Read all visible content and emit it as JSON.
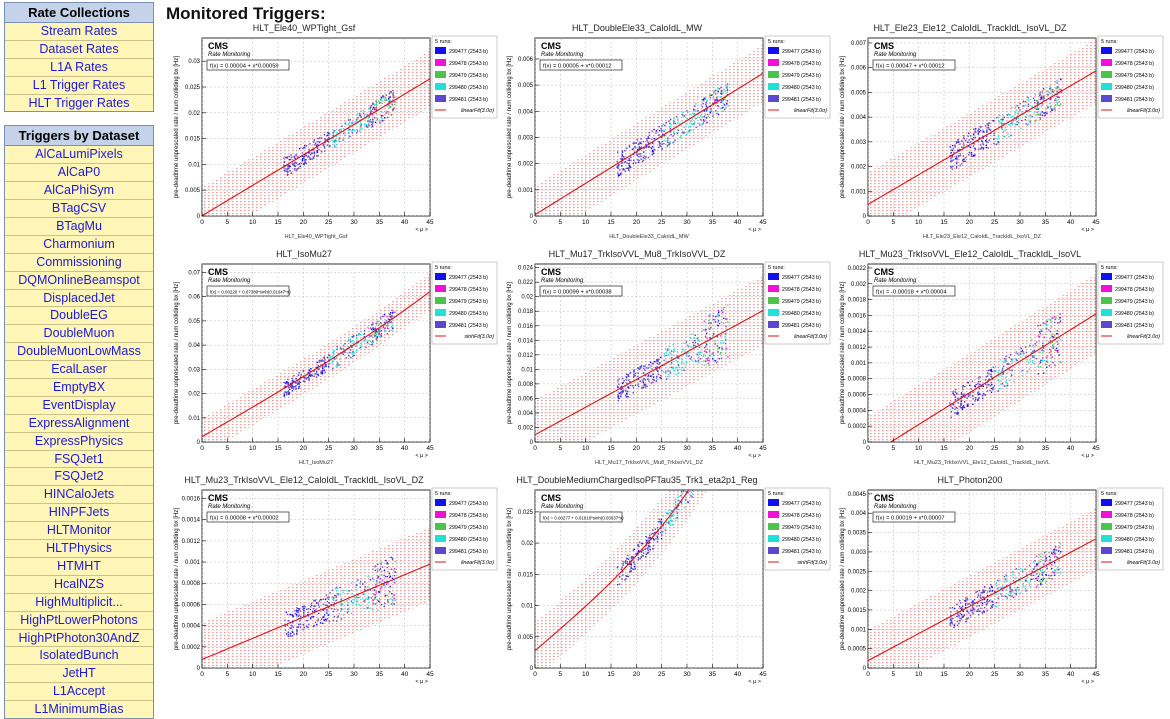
{
  "sidebar": {
    "rate_collections": {
      "title": "Rate Collections",
      "items": [
        "Stream Rates",
        "Dataset Rates",
        "L1A Rates",
        "L1 Trigger Rates",
        "HLT Trigger Rates"
      ]
    },
    "triggers_by_dataset": {
      "title": "Triggers by Dataset",
      "items": [
        "AlCaLumiPixels",
        "AlCaP0",
        "AlCaPhiSym",
        "BTagCSV",
        "BTagMu",
        "Charmonium",
        "Commissioning",
        "DQMOnlineBeamspot",
        "DisplacedJet",
        "DoubleEG",
        "DoubleMuon",
        "DoubleMuonLowMass",
        "EcalLaser",
        "EmptyBX",
        "EventDisplay",
        "ExpressAlignment",
        "ExpressPhysics",
        "FSQJet1",
        "FSQJet2",
        "HINCaloJets",
        "HINPFJets",
        "HLTMonitor",
        "HLTPhysics",
        "HTMHT",
        "HcalNZS",
        "HighMultiplicit...",
        "HighPtLowerPhotons",
        "HighPtPhoton30AndZ",
        "IsolatedBunch",
        "JetHT",
        "L1Accept",
        "L1MinimumBias"
      ]
    }
  },
  "main": {
    "title": "Monitored Triggers:"
  },
  "common": {
    "cms_label": "CMS",
    "rate_label": "Rate Monitoring",
    "ylabel": "pre-deadtime unprescaled rate / num colliding bx [Hz]",
    "xaxis_symbol": "< μ >",
    "legend_header": "5 runs:",
    "runs": [
      {
        "label": "299477 (2543 b)",
        "color": "#1010f0"
      },
      {
        "label": "299478 (2543 b)",
        "color": "#f010d8"
      },
      {
        "label": "299479 (2543 b)",
        "color": "#4cc44c"
      },
      {
        "label": "299480 (2543 b)",
        "color": "#20e0d8"
      },
      {
        "label": "299481 (2543 b)",
        "color": "#5a48d0"
      }
    ],
    "fit_color": "#e01010",
    "band_color": "#f29a9a"
  },
  "chart_data": [
    {
      "type": "scatter",
      "title": "HLT_Ele40_WPTight_Gsf",
      "xlabel": "HLT_Ele40_WPTight_Gsf",
      "xlim": [
        0,
        45
      ],
      "ylim": [
        0,
        0.0345
      ],
      "yticks": [
        "0",
        "0.005",
        "0.01",
        "0.015",
        "0.02",
        "0.025",
        "0.03"
      ],
      "xticks": [
        "0",
        "5",
        "10",
        "15",
        "20",
        "25",
        "30",
        "35",
        "40",
        "45"
      ],
      "fit_text": "f(x) = 0.00004 + x*0.00059",
      "fit_legend": "linearFit(3.0σ)",
      "fit": {
        "kind": "linear",
        "a": 4e-05,
        "b": 0.00059
      },
      "band": 0.0055,
      "clusters": [
        {
          "x": [
            16,
            25
          ],
          "y": [
            0.0095,
            0.0155
          ]
        },
        {
          "x": [
            25,
            33
          ],
          "y": [
            0.0145,
            0.0205
          ]
        },
        {
          "x": [
            33,
            38
          ],
          "y": [
            0.019,
            0.0265
          ]
        }
      ]
    },
    {
      "type": "scatter",
      "title": "HLT_DoubleEle33_CaloIdL_MW",
      "xlabel": "HLT_DoubleEle33_CaloIdL_MW",
      "xlim": [
        0,
        45
      ],
      "ylim": [
        0,
        0.0068
      ],
      "yticks": [
        "0",
        "0.001",
        "0.002",
        "0.003",
        "0.004",
        "0.005",
        "0.006"
      ],
      "xticks": [
        "0",
        "5",
        "10",
        "15",
        "20",
        "25",
        "30",
        "35",
        "40",
        "45"
      ],
      "fit_text": "f(x) = 0.00005 + x*0.00012",
      "fit_legend": "linearFit(3.0σ)",
      "fit": {
        "kind": "linear",
        "a": 5e-05,
        "b": 0.00012
      },
      "band": 0.0011,
      "clusters": [
        {
          "x": [
            16,
            25
          ],
          "y": [
            0.0017,
            0.0032
          ]
        },
        {
          "x": [
            25,
            33
          ],
          "y": [
            0.0027,
            0.0042
          ]
        },
        {
          "x": [
            33,
            38
          ],
          "y": [
            0.0037,
            0.0053
          ]
        }
      ]
    },
    {
      "type": "scatter",
      "title": "HLT_Ele23_Ele12_CaloIdL_TrackIdL_IsoVL_DZ",
      "xlabel": "HLT_Ele23_Ele12_CaloIdL_TrackIdL_IsoVL_DZ",
      "xlim": [
        0,
        45
      ],
      "ylim": [
        0,
        0.0072
      ],
      "yticks": [
        "0",
        "0.001",
        "0.002",
        "0.003",
        "0.004",
        "0.005",
        "0.006",
        "0.007"
      ],
      "xticks": [
        "0",
        "5",
        "10",
        "15",
        "20",
        "25",
        "30",
        "35",
        "40",
        "45"
      ],
      "fit_text": "f(x) = 0.00047 + x*0.00012",
      "fit_legend": "linearFit(3.0σ)",
      "fit": {
        "kind": "linear",
        "a": 0.00047,
        "b": 0.00012
      },
      "band": 0.0013,
      "clusters": [
        {
          "x": [
            16,
            25
          ],
          "y": [
            0.0018,
            0.0036
          ]
        },
        {
          "x": [
            25,
            33
          ],
          "y": [
            0.0032,
            0.005
          ]
        },
        {
          "x": [
            33,
            38
          ],
          "y": [
            0.0042,
            0.006
          ]
        }
      ]
    },
    {
      "type": "scatter",
      "title": "HLT_IsoMu27",
      "xlabel": "HLT_IsoMu27",
      "xlim": [
        0,
        45
      ],
      "ylim": [
        0,
        0.0735
      ],
      "yticks": [
        "0",
        "0.01",
        "0.02",
        "0.03",
        "0.04",
        "0.05",
        "0.06",
        "0.07"
      ],
      "xticks": [
        "0",
        "5",
        "10",
        "15",
        "20",
        "25",
        "30",
        "35",
        "40",
        "45"
      ],
      "fit_text": "f(x) = 0.00220 + 0.07389*sinh(0.01647*x)",
      "fit_legend": "sinhFit(3.0σ)",
      "fit": {
        "kind": "sinh",
        "a": 0.0022,
        "b": 0.07389,
        "c": 0.01647
      },
      "band": 0.0075,
      "clusters": [
        {
          "x": [
            16,
            25
          ],
          "y": [
            0.023,
            0.033
          ]
        },
        {
          "x": [
            25,
            33
          ],
          "y": [
            0.035,
            0.048
          ]
        },
        {
          "x": [
            33,
            38
          ],
          "y": [
            0.046,
            0.06
          ]
        }
      ]
    },
    {
      "type": "scatter",
      "title": "HLT_Mu17_TrkIsoVVL_Mu8_TrkIsoVVL_DZ",
      "xlabel": "HLT_Mu17_TrkIsoVVL_Mu8_TrkIsoVVL_DZ",
      "xlim": [
        0,
        45
      ],
      "ylim": [
        0,
        0.0245
      ],
      "yticks": [
        "0",
        "0.002",
        "0.004",
        "0.006",
        "0.008",
        "0.01",
        "0.012",
        "0.014",
        "0.016",
        "0.018",
        "0.02",
        "0.022",
        "0.024"
      ],
      "xticks": [
        "0",
        "5",
        "10",
        "15",
        "20",
        "25",
        "30",
        "35",
        "40",
        "45"
      ],
      "fit_text": "f(x) = 0.00099 + x*0.00038",
      "fit_legend": "linearFit(3.0σ)",
      "fit": {
        "kind": "linear",
        "a": 0.00099,
        "b": 0.00038
      },
      "band": 0.0048,
      "clusters": [
        {
          "x": [
            16,
            25
          ],
          "y": [
            0.005,
            0.01
          ]
        },
        {
          "x": [
            25,
            33
          ],
          "y": [
            0.009,
            0.016
          ]
        },
        {
          "x": [
            33,
            38
          ],
          "y": [
            0.011,
            0.022
          ]
        }
      ]
    },
    {
      "type": "scatter",
      "title": "HLT_Mu23_TrkIsoVVL_Ele12_CaloIdL_TrackIdL_IsoVL",
      "xlabel": "HLT_Mu23_TrkIsoVVL_Ele12_CaloIdL_TrackIdL_IsoVL",
      "xlim": [
        0,
        45
      ],
      "ylim": [
        0,
        0.00225
      ],
      "yticks": [
        "0",
        "0.0002",
        "0.0004",
        "0.0006",
        "0.0008",
        "0.001",
        "0.0012",
        "0.0014",
        "0.0016",
        "0.0018",
        "0.002",
        "0.0022"
      ],
      "xticks": [
        "0",
        "5",
        "10",
        "15",
        "20",
        "25",
        "30",
        "35",
        "40",
        "45"
      ],
      "fit_text": "f(x) = -0.00018 + x*0.00004",
      "fit_legend": "linearFit(3.0σ)",
      "fit": {
        "kind": "linear",
        "a": -0.00018,
        "b": 4e-05
      },
      "band": 0.0005,
      "clusters": [
        {
          "x": [
            16,
            25
          ],
          "y": [
            0.0004,
            0.0009
          ]
        },
        {
          "x": [
            25,
            33
          ],
          "y": [
            0.0007,
            0.0013
          ]
        },
        {
          "x": [
            33,
            38
          ],
          "y": [
            0.0009,
            0.0019
          ]
        }
      ]
    },
    {
      "type": "scatter",
      "title": "HLT_Mu23_TrkIsoVVL_Ele12_CaloIdL_TrackIdL_IsoVL_DZ",
      "xlabel": "",
      "xlim": [
        0,
        45
      ],
      "ylim": [
        0,
        0.00168
      ],
      "yticks": [
        "0",
        "0.0002",
        "0.0004",
        "0.0006",
        "0.0008",
        "0.001",
        "0.0012",
        "0.0014",
        "0.0016"
      ],
      "xticks": [
        "0",
        "5",
        "10",
        "15",
        "20",
        "25",
        "30",
        "35",
        "40",
        "45"
      ],
      "fit_text": "f(x) = 0.00008 + x*0.00002",
      "fit_legend": "linearFit(3.0σ)",
      "fit": {
        "kind": "linear",
        "a": 8e-05,
        "b": 2e-05
      },
      "band": 0.00035,
      "clusters": [
        {
          "x": [
            16,
            25
          ],
          "y": [
            0.0003,
            0.0007
          ]
        },
        {
          "x": [
            25,
            33
          ],
          "y": [
            0.0005,
            0.001
          ]
        },
        {
          "x": [
            33,
            38
          ],
          "y": [
            0.0006,
            0.0013
          ]
        }
      ]
    },
    {
      "type": "scatter",
      "title": "HLT_DoubleMediumChargedIsoPFTau35_Trk1_eta2p1_Reg",
      "xlabel": "",
      "xlim": [
        0,
        45
      ],
      "ylim": [
        0,
        0.0285
      ],
      "yticks": [
        "0",
        "0.005",
        "0.01",
        "0.015",
        "0.02",
        "0.025"
      ],
      "xticks": [
        "0",
        "5",
        "10",
        "15",
        "20",
        "25",
        "30",
        "35",
        "40",
        "45"
      ],
      "fit_text": "f(x) = 0.00277 + 0.01918*sinh(0.03637*x)",
      "fit_legend": "sinhFit(3.0σ)",
      "fit": {
        "kind": "sinh",
        "a": 0.00277,
        "b": 0.01918,
        "c": 0.03637
      },
      "band": 0.0045,
      "clusters": [
        {
          "x": [
            16,
            25
          ],
          "y": [
            0.009,
            0.0145
          ]
        },
        {
          "x": [
            25,
            33
          ],
          "y": [
            0.0135,
            0.019
          ]
        },
        {
          "x": [
            33,
            38
          ],
          "y": [
            0.0175,
            0.023
          ]
        }
      ]
    },
    {
      "type": "scatter",
      "title": "HLT_Photon200",
      "xlabel": "",
      "xlim": [
        0,
        45
      ],
      "ylim": [
        0,
        0.0046
      ],
      "yticks": [
        "0",
        "0.0005",
        "0.001",
        "0.0015",
        "0.002",
        "0.0025",
        "0.003",
        "0.0035",
        "0.004",
        "0.0045"
      ],
      "xticks": [
        "0",
        "5",
        "10",
        "15",
        "20",
        "25",
        "30",
        "35",
        "40",
        "45"
      ],
      "fit_text": "f(x) = 0.00019 + x*0.00007",
      "fit_legend": "linearFit(3.0σ)",
      "fit": {
        "kind": "linear",
        "a": 0.00019,
        "b": 7e-05
      },
      "band": 0.0008,
      "clusters": [
        {
          "x": [
            16,
            25
          ],
          "y": [
            0.0011,
            0.0021
          ]
        },
        {
          "x": [
            25,
            33
          ],
          "y": [
            0.0018,
            0.0029
          ]
        },
        {
          "x": [
            33,
            38
          ],
          "y": [
            0.0024,
            0.0037
          ]
        }
      ]
    }
  ]
}
